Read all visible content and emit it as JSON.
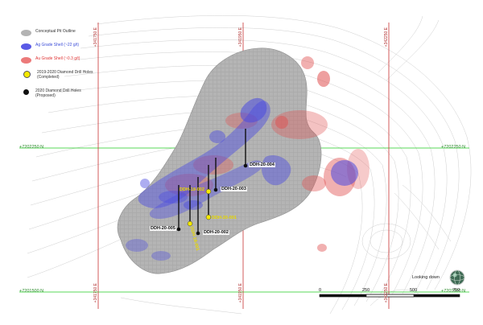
{
  "legend": {
    "pit_outline": "Conceptual Pit Outline",
    "ag_shell": "Ag Grade Shell (~22 g/t)",
    "au_shell": "Au Grade Shell (~0.3 g/t)",
    "completed_line1": "2019-2020 Diamond Drill Holes",
    "completed_line2": "(Completed)",
    "proposed_line1": "2020 Diamond Drill Holes",
    "proposed_line2": "(Proposed)"
  },
  "grid": {
    "northing_top_left": "+7202250 N",
    "northing_top_right": "+7202250 N",
    "northing_bottom_left": "+7201500 N",
    "northing_bottom_right": "+7201500 N",
    "easting_1_top": "+341750 E",
    "easting_1_bottom": "+341750 E",
    "easting_2_top": "+341950 E",
    "easting_2_bottom": "+341950 E",
    "easting_3_top": "+342250 E",
    "easting_3_bottom": "+342250 E"
  },
  "holes": {
    "ddh004": "DDH-20-004",
    "ddh003": "DDH-20-003",
    "ddh002": "DDH-20-002",
    "ddh005": "DDH-20-005",
    "ddh_completed_1": "DDH-19-002",
    "ddh_completed_2": "DDH-19-001",
    "ddh_completed_3": "DDH-20-001"
  },
  "scale": {
    "t0": "0",
    "t1": "250",
    "t2": "500",
    "t3": "750"
  },
  "orientation": "Looking down",
  "colors": {
    "pit": "#9a9a9a",
    "ag": "#4a4ae0",
    "au": "#e04a4a",
    "grid_green": "#22cc22",
    "grid_red": "#c83232",
    "completed": "#f5e900",
    "proposed": "#111111"
  }
}
